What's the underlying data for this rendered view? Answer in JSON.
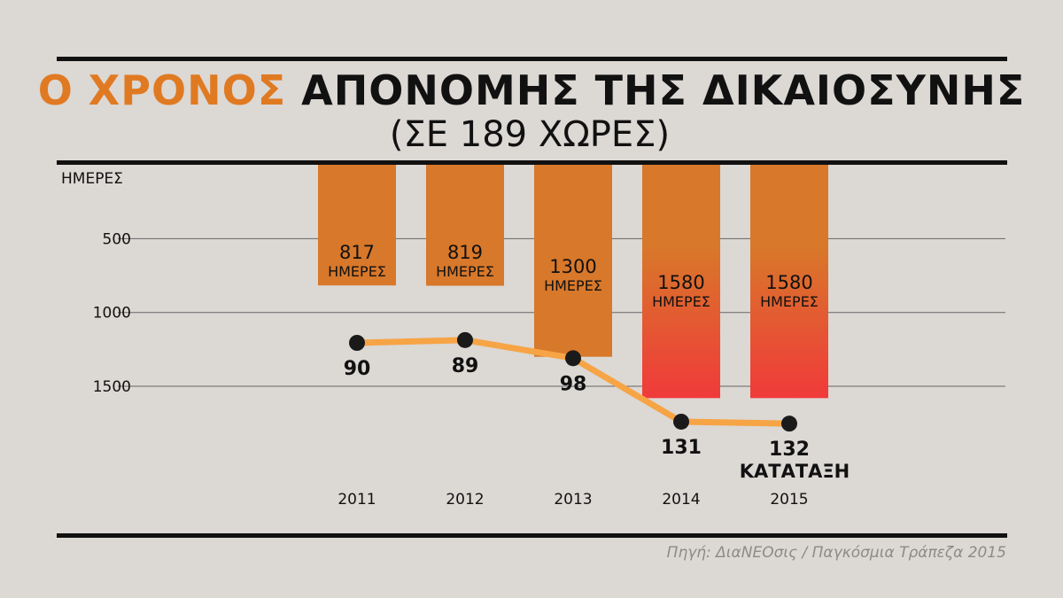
{
  "header": {
    "title_accent": "Ο ΧΡΟΝΟΣ",
    "title_rest": "ΑΠΟΝΟΜΗΣ ΤΗΣ ΔΙΚΑΙΟΣΥΝΗΣ",
    "subtitle": "(ΣΕ 189 ΧΩΡΕΣ)"
  },
  "footer": {
    "source": "Πηγή: ΔιαΝΕΟσις / Παγκόσμια Τράπεζα 2015"
  },
  "colors": {
    "background": "#dcd8d4",
    "accent": "#e07a22",
    "bar": "#d8782a",
    "bar_highlight_bottom": "#f03a3a",
    "line": "#f6a445",
    "dot": "#1a1a1a"
  },
  "chart_data": {
    "type": "bar",
    "title": "Ο ΧΡΟΝΟΣ ΑΠΟΝΟΜΗΣ ΤΗΣ ΔΙΚΑΙΟΣΥΝΗΣ (ΣΕ 189 ΧΩΡΕΣ)",
    "ylabel": "ΗΜΕΡΕΣ",
    "yaxis_inverted": true,
    "ylim": [
      0,
      1580
    ],
    "yticks": [
      500,
      1000,
      1500
    ],
    "categories": [
      "2011",
      "2012",
      "2013",
      "2014",
      "2015"
    ],
    "series": [
      {
        "name": "ΗΜΕΡΕΣ",
        "type": "bar",
        "values": [
          817,
          819,
          1300,
          1580,
          1580
        ],
        "value_labels": [
          "817",
          "819",
          "1300",
          "1580",
          "1580"
        ],
        "unit_label": "ΗΜΕΡΕΣ"
      },
      {
        "name": "ΚΑΤΑΤΑΞΗ",
        "type": "line",
        "values": [
          90,
          89,
          98,
          131,
          132
        ],
        "labels": [
          "90",
          "89",
          "98",
          "131",
          "132"
        ],
        "last_label_suffix": "ΚΑΤΑΤΑΞΗ"
      }
    ]
  }
}
